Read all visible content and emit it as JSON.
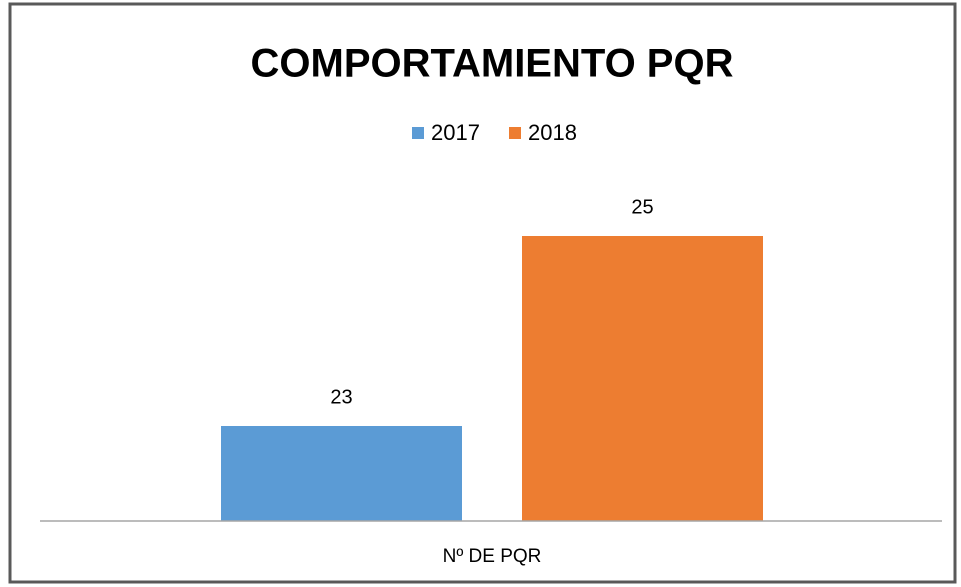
{
  "chart_data": {
    "type": "bar",
    "title": "COMPORTAMIENTO PQR",
    "categories": [
      "Nº DE PQR"
    ],
    "series": [
      {
        "name": "2017",
        "color": "#5b9bd5",
        "values": [
          23
        ]
      },
      {
        "name": "2018",
        "color": "#ed7d31",
        "values": [
          25
        ]
      }
    ],
    "ylim": [
      22,
      25.5
    ],
    "legend": "top",
    "grid": false
  }
}
